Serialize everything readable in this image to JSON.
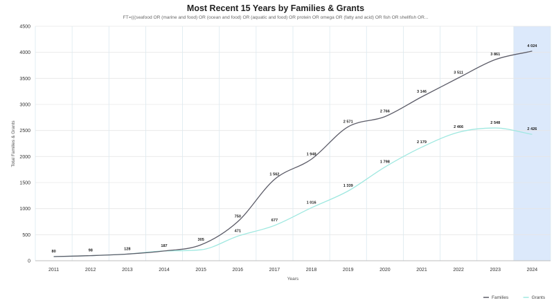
{
  "chart_data": {
    "type": "line",
    "title": "Most Recent 15 Years by Families & Grants",
    "subtitle": "FT=(((seafood OR (marine and food) OR (ocean and food) OR (aquatic and food) OR protein OR omega OR (fatty and acid) OR fish OR shellfish OR...",
    "xlabel": "Years",
    "ylabel": "Total Families & Grants",
    "ylim": [
      0,
      4500
    ],
    "yticks": [
      0,
      500,
      1000,
      1500,
      2000,
      2500,
      3000,
      3500,
      4000,
      4500
    ],
    "categories": [
      "2011",
      "2012",
      "2013",
      "2014",
      "2015",
      "2016",
      "2017",
      "2018",
      "2019",
      "2020",
      "2021",
      "2022",
      "2023",
      "2024"
    ],
    "series": [
      {
        "name": "Families",
        "color": "#5b5b67",
        "values": [
          80,
          98,
          128,
          187,
          305,
          750,
          1562,
          1948,
          2571,
          2766,
          3146,
          3511,
          3861,
          4024
        ],
        "labels": [
          "80",
          "98",
          "128",
          "187",
          "305",
          "750",
          "1 562",
          "1 948",
          "2 571",
          "2 766",
          "3 146",
          "3 511",
          "3 861",
          "4 024"
        ]
      },
      {
        "name": "Grants",
        "color": "#9fe8e0",
        "values": [
          80,
          98,
          128,
          187,
          210,
          471,
          677,
          1016,
          1339,
          1798,
          2179,
          2466,
          2548,
          2426
        ],
        "labels": [
          "",
          "",
          "",
          "",
          "",
          "471",
          "677",
          "1 016",
          "1 339",
          "1 798",
          "2 179",
          "2 466",
          "2 548",
          "2 426"
        ]
      }
    ],
    "highlight_category": "2024",
    "highlight_color": "#dce9fb",
    "grid": true,
    "legend": "bottom-right"
  }
}
